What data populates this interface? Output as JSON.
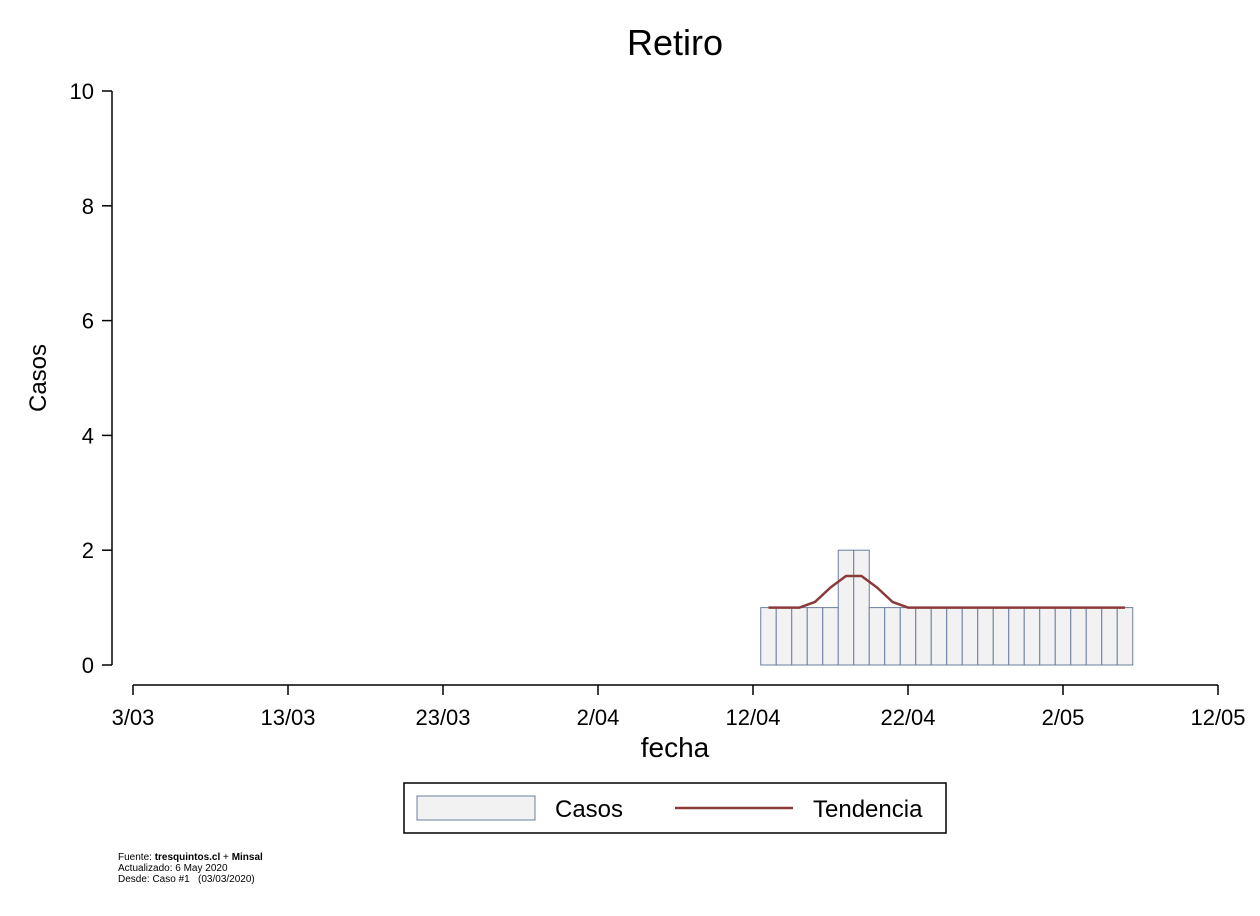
{
  "chart_data": {
    "type": "bar",
    "title": "Retiro",
    "xlabel": "fecha",
    "ylabel": "Casos",
    "ylim": [
      0,
      10
    ],
    "yticks": [
      0,
      2,
      4,
      6,
      8,
      10
    ],
    "xlim": [
      "2020-03-03",
      "2020-05-12"
    ],
    "xticks": [
      {
        "date": "2020-03-03",
        "label": "3/03"
      },
      {
        "date": "2020-03-13",
        "label": "13/03"
      },
      {
        "date": "2020-03-23",
        "label": "23/03"
      },
      {
        "date": "2020-04-02",
        "label": "2/04"
      },
      {
        "date": "2020-04-12",
        "label": "12/04"
      },
      {
        "date": "2020-04-22",
        "label": "22/04"
      },
      {
        "date": "2020-05-02",
        "label": "2/05"
      },
      {
        "date": "2020-05-12",
        "label": "12/05"
      }
    ],
    "grid": false,
    "legend_position": "bottom",
    "series": [
      {
        "name": "Casos",
        "type": "bar",
        "color": "#f2f2f2",
        "edge_color": "#6a7fa0",
        "x": [
          "2020-04-13",
          "2020-04-14",
          "2020-04-15",
          "2020-04-16",
          "2020-04-17",
          "2020-04-18",
          "2020-04-19",
          "2020-04-20",
          "2020-04-21",
          "2020-04-22",
          "2020-04-23",
          "2020-04-24",
          "2020-04-25",
          "2020-04-26",
          "2020-04-27",
          "2020-04-28",
          "2020-04-29",
          "2020-04-30",
          "2020-05-01",
          "2020-05-02",
          "2020-05-03",
          "2020-05-04",
          "2020-05-05",
          "2020-05-06"
        ],
        "values": [
          1,
          1,
          1,
          1,
          1,
          2,
          2,
          1,
          1,
          1,
          1,
          1,
          1,
          1,
          1,
          1,
          1,
          1,
          1,
          1,
          1,
          1,
          1,
          1
        ]
      },
      {
        "name": "Tendencia",
        "type": "line",
        "color": "#8b3a3a",
        "x": [
          "2020-04-13",
          "2020-04-14",
          "2020-04-15",
          "2020-04-16",
          "2020-04-17",
          "2020-04-18",
          "2020-04-19",
          "2020-04-20",
          "2020-04-21",
          "2020-04-22",
          "2020-04-23",
          "2020-04-24",
          "2020-04-25",
          "2020-04-26",
          "2020-04-27",
          "2020-04-28",
          "2020-04-29",
          "2020-04-30",
          "2020-05-01",
          "2020-05-02",
          "2020-05-03",
          "2020-05-04",
          "2020-05-05",
          "2020-05-06"
        ],
        "values": [
          1,
          1,
          1,
          1.1,
          1.35,
          1.55,
          1.55,
          1.35,
          1.1,
          1,
          1,
          1,
          1,
          1,
          1,
          1,
          1,
          1,
          1,
          1,
          1,
          1,
          1,
          1
        ]
      }
    ]
  },
  "footer": {
    "fuente_prefix": "Fuente: ",
    "fuente_site": "tresquintos.cl",
    "fuente_plus": " + ",
    "fuente_org": "Minsal",
    "actualizado": "Actualizado: 6 May 2020",
    "desde": "Desde: Caso #1   (03/03/2020)"
  }
}
